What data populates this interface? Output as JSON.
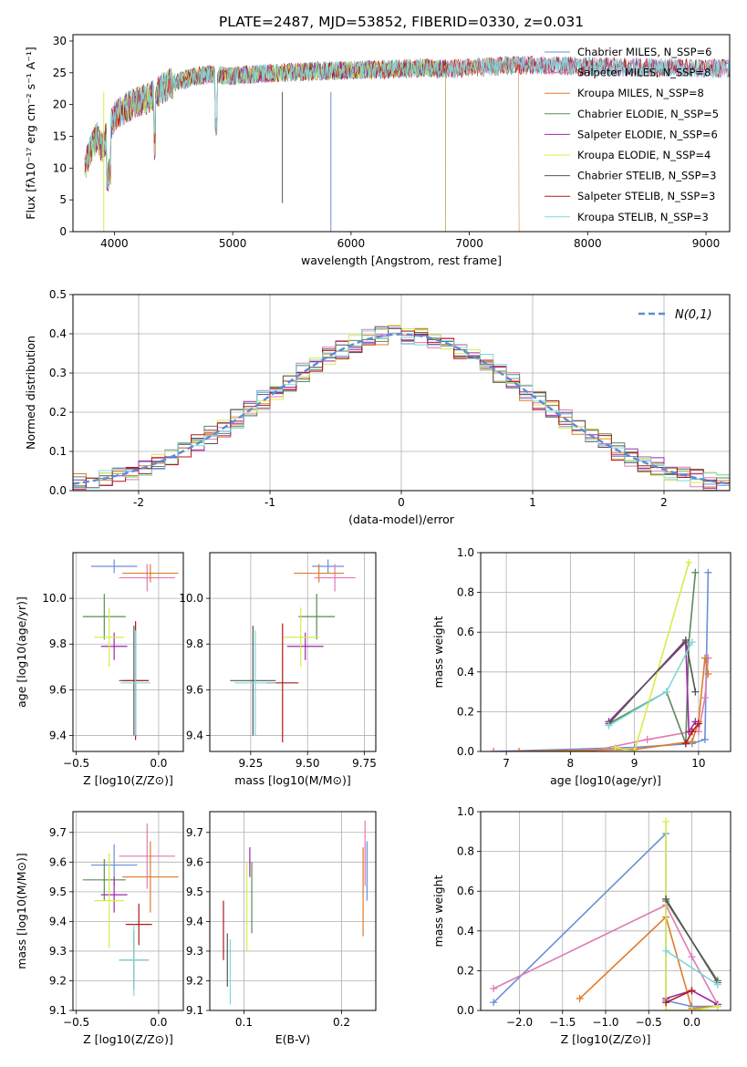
{
  "figure_title": "PLATE=2487, MJD=53852, FIBERID=0330, z=0.031",
  "colors": {
    "Chabrier MILES": "#6a8fd6",
    "Salpeter MILES": "#e07ab4",
    "Kroupa MILES": "#e07b2a",
    "Chabrier ELODIE": "#5a8a5a",
    "Salpeter ELODIE": "#9c2aa6",
    "Kroupa ELODIE": "#d8ec4a",
    "Chabrier STELIB": "#555555",
    "Salpeter STELIB": "#b01818",
    "Kroupa STELIB": "#7fd8d8"
  },
  "chart_data": [
    {
      "id": "spectrum",
      "type": "line",
      "title": "PLATE=2487, MJD=53852, FIBERID=0330, z=0.031",
      "xlabel": "wavelength [Angstrom, rest frame]",
      "ylabel": "Flux [fλ10⁻¹⁷ erg cm⁻² s⁻¹ A⁻¹]",
      "xlim": [
        3650,
        9200
      ],
      "ylim": [
        0,
        31
      ],
      "xticks": [
        4000,
        5000,
        6000,
        7000,
        8000,
        9000
      ],
      "yticks": [
        0,
        5,
        10,
        15,
        20,
        25,
        30
      ],
      "grid": false,
      "legend_position": "top-right",
      "continuum": {
        "x": [
          3750,
          3800,
          3850,
          3900,
          3950,
          4000,
          4100,
          4200,
          4300,
          4400,
          4500,
          4600,
          4700,
          4800,
          4900,
          5000,
          5200,
          5400,
          5600,
          5800,
          6000,
          6200,
          6400,
          6600,
          6800,
          7000,
          7200,
          7400
        ],
        "y": [
          10,
          13,
          15,
          13,
          16,
          18,
          19.5,
          20.5,
          21,
          22.5,
          23.5,
          24,
          24.5,
          24.7,
          24.6,
          24.5,
          24.8,
          25,
          25.2,
          25.3,
          25.4,
          25.5,
          25.6,
          25.8,
          25.6,
          25.8,
          26,
          26.2
        ]
      },
      "series": [
        {
          "name": "Chabrier MILES, N_SSP=6",
          "end": 9200
        },
        {
          "name": "Salpeter MILES, N_SSP=8",
          "end": 9200
        },
        {
          "name": "Kroupa MILES, N_SSP=8",
          "end": 7420
        },
        {
          "name": "Chabrier ELODIE, N_SSP=5",
          "end": 6800
        },
        {
          "name": "Salpeter ELODIE, N_SSP=6",
          "end": 6800
        },
        {
          "name": "Kroupa ELODIE, N_SSP=4",
          "end": 6800
        },
        {
          "name": "Chabrier STELIB, N_SSP=3",
          "end": 9200
        },
        {
          "name": "Salpeter STELIB, N_SSP=3",
          "end": 9200
        },
        {
          "name": "Kroupa STELIB, N_SSP=3",
          "end": 9200
        }
      ]
    },
    {
      "id": "residuals",
      "type": "line",
      "xlabel": "(data-model)/error",
      "ylabel": "Normed distribution",
      "xlim": [
        -2.5,
        2.5
      ],
      "ylim": [
        0,
        0.5
      ],
      "xticks": [
        -2,
        -1,
        0,
        1,
        2
      ],
      "yticks": [
        0.0,
        0.1,
        0.2,
        0.3,
        0.4,
        0.5
      ],
      "grid": true,
      "legend": "N(0,1)",
      "legend_position": "top-right",
      "bin_width": 0.1
    },
    {
      "id": "age-vs-Z",
      "type": "scatter",
      "xlabel": "Z [log10(Z/Z⊙)]",
      "ylabel": "age [log10(age/yr)]",
      "xlim": [
        -0.52,
        0.15
      ],
      "ylim": [
        9.33,
        10.2
      ],
      "xticks": [
        -0.5,
        0.0
      ],
      "yticks": [
        9.4,
        9.6,
        9.8,
        10.0
      ],
      "grid": true,
      "points": [
        {
          "s": "Chabrier MILES",
          "x": -0.27,
          "xerr": 0.14,
          "y": 10.14,
          "yerr": 0.03
        },
        {
          "s": "Salpeter MILES",
          "x": -0.07,
          "xerr": 0.17,
          "y": 10.09,
          "yerr": 0.06
        },
        {
          "s": "Kroupa MILES",
          "x": -0.05,
          "xerr": 0.17,
          "y": 10.11,
          "yerr": 0.04
        },
        {
          "s": "Chabrier ELODIE",
          "x": -0.33,
          "xerr": 0.13,
          "y": 9.92,
          "yerr": 0.1
        },
        {
          "s": "Salpeter ELODIE",
          "x": -0.27,
          "xerr": 0.08,
          "y": 9.79,
          "yerr": 0.06
        },
        {
          "s": "Kroupa ELODIE",
          "x": -0.3,
          "xerr": 0.09,
          "y": 9.83,
          "yerr": 0.13
        },
        {
          "s": "Chabrier STELIB",
          "x": -0.15,
          "xerr": 0.09,
          "y": 9.64,
          "yerr": 0.24
        },
        {
          "s": "Salpeter STELIB",
          "x": -0.14,
          "xerr": 0.08,
          "y": 9.64,
          "yerr": 0.26
        },
        {
          "s": "Kroupa STELIB",
          "x": -0.14,
          "xerr": 0.09,
          "y": 9.63,
          "yerr": 0.23
        }
      ]
    },
    {
      "id": "age-vs-mass",
      "type": "scatter",
      "xlabel": "mass [log10(M/M⊙)]",
      "xlim": [
        9.07,
        9.8
      ],
      "ylim": [
        9.33,
        10.2
      ],
      "xticks": [
        9.25,
        9.5,
        9.75
      ],
      "yticks": [
        9.4,
        9.6,
        9.8,
        10.0
      ],
      "grid": true,
      "points": [
        {
          "s": "Chabrier MILES",
          "x": 9.59,
          "xerr": 0.07,
          "y": 10.14,
          "yerr": 0.03
        },
        {
          "s": "Salpeter MILES",
          "x": 9.62,
          "xerr": 0.09,
          "y": 10.09,
          "yerr": 0.06
        },
        {
          "s": "Kroupa MILES",
          "x": 9.55,
          "xerr": 0.11,
          "y": 10.11,
          "yerr": 0.04
        },
        {
          "s": "Chabrier ELODIE",
          "x": 9.54,
          "xerr": 0.08,
          "y": 9.92,
          "yerr": 0.1
        },
        {
          "s": "Salpeter ELODIE",
          "x": 9.49,
          "xerr": 0.08,
          "y": 9.79,
          "yerr": 0.06
        },
        {
          "s": "Kroupa ELODIE",
          "x": 9.47,
          "xerr": 0.08,
          "y": 9.83,
          "yerr": 0.13
        },
        {
          "s": "Chabrier STELIB",
          "x": 9.26,
          "xerr": 0.1,
          "y": 9.64,
          "yerr": 0.24
        },
        {
          "s": "Salpeter STELIB",
          "x": 9.39,
          "xerr": 0.07,
          "y": 9.63,
          "yerr": 0.26
        },
        {
          "s": "Kroupa STELIB",
          "x": 9.27,
          "xerr": 0.09,
          "y": 9.63,
          "yerr": 0.23
        }
      ]
    },
    {
      "id": "weight-vs-age",
      "type": "line",
      "xlabel": "age [log10(age/yr)]",
      "ylabel": "mass weight",
      "xlim": [
        6.6,
        10.5
      ],
      "ylim": [
        0,
        1.0
      ],
      "xticks": [
        7,
        8,
        9,
        10
      ],
      "yticks": [
        0.0,
        0.2,
        0.4,
        0.6,
        0.8,
        1.0
      ],
      "grid": true,
      "series": [
        {
          "s": "Chabrier MILES",
          "x": [
            6.8,
            9.0,
            9.9,
            10.1,
            10.15
          ],
          "y": [
            0.0,
            0.02,
            0.04,
            0.06,
            0.9
          ]
        },
        {
          "s": "Salpeter MILES",
          "x": [
            6.8,
            8.3,
            9.2,
            9.9,
            10.0,
            10.1,
            10.15
          ],
          "y": [
            0.0,
            0.0,
            0.06,
            0.1,
            0.1,
            0.27,
            0.47
          ]
        },
        {
          "s": "Kroupa MILES",
          "x": [
            7.2,
            9.0,
            9.9,
            10.0,
            10.1,
            10.15
          ],
          "y": [
            0.0,
            0.01,
            0.05,
            0.15,
            0.47,
            0.39
          ]
        },
        {
          "s": "Chabrier ELODIE",
          "x": [
            8.6,
            9.5,
            9.8,
            9.85,
            9.95
          ],
          "y": [
            0.14,
            0.3,
            0.04,
            0.55,
            0.9
          ]
        },
        {
          "s": "Salpeter ELODIE",
          "x": [
            8.6,
            9.8,
            9.85,
            9.95
          ],
          "y": [
            0.15,
            0.55,
            0.1,
            0.15
          ]
        },
        {
          "s": "Kroupa ELODIE",
          "x": [
            8.7,
            9.0,
            9.85
          ],
          "y": [
            0.02,
            0.0,
            0.95
          ]
        },
        {
          "s": "Chabrier STELIB",
          "x": [
            8.6,
            9.8,
            9.95
          ],
          "y": [
            0.14,
            0.56,
            0.3
          ]
        },
        {
          "s": "Salpeter STELIB",
          "x": [
            9.8,
            9.9,
            10.0
          ],
          "y": [
            0.04,
            0.1,
            0.14
          ]
        },
        {
          "s": "Kroupa STELIB",
          "x": [
            8.6,
            9.5,
            9.9
          ],
          "y": [
            0.13,
            0.3,
            0.55
          ]
        }
      ]
    },
    {
      "id": "mass-vs-Z",
      "type": "scatter",
      "xlabel": "Z [log10(Z/Z⊙)]",
      "ylabel": "mass [log10(M/M⊙)]",
      "xlim": [
        -0.52,
        0.15
      ],
      "ylim": [
        9.1,
        9.77
      ],
      "xticks": [
        -0.5,
        0.0
      ],
      "yticks": [
        9.1,
        9.2,
        9.3,
        9.4,
        9.5,
        9.6,
        9.7
      ],
      "grid": true,
      "points": [
        {
          "s": "Chabrier MILES",
          "x": -0.27,
          "xerr": 0.14,
          "y": 9.59,
          "yerr": 0.07
        },
        {
          "s": "Salpeter MILES",
          "x": -0.07,
          "xerr": 0.17,
          "y": 9.62,
          "yerr": 0.11
        },
        {
          "s": "Kroupa MILES",
          "x": -0.05,
          "xerr": 0.17,
          "y": 9.55,
          "yerr": 0.12
        },
        {
          "s": "Chabrier ELODIE",
          "x": -0.33,
          "xerr": 0.13,
          "y": 9.54,
          "yerr": 0.07
        },
        {
          "s": "Salpeter ELODIE",
          "x": -0.27,
          "xerr": 0.08,
          "y": 9.49,
          "yerr": 0.06
        },
        {
          "s": "Kroupa ELODIE",
          "x": -0.3,
          "xerr": 0.09,
          "y": 9.47,
          "yerr": 0.16
        },
        {
          "s": "Chabrier STELIB",
          "x": -0.15,
          "xerr": 0.09,
          "y": 9.27,
          "yerr": 0.1
        },
        {
          "s": "Salpeter STELIB",
          "x": -0.12,
          "xerr": 0.08,
          "y": 9.39,
          "yerr": 0.07
        },
        {
          "s": "Kroupa STELIB",
          "x": -0.15,
          "xerr": 0.09,
          "y": 9.27,
          "yerr": 0.12
        }
      ]
    },
    {
      "id": "mass-vs-ebv",
      "type": "scatter",
      "xlabel": "E(B-V)",
      "xlim": [
        0.065,
        0.235
      ],
      "ylim": [
        9.1,
        9.77
      ],
      "xticks": [
        0.1,
        0.2
      ],
      "yticks": [
        9.1,
        9.2,
        9.3,
        9.4,
        9.5,
        9.6,
        9.7
      ],
      "grid": true,
      "points": [
        {
          "s": "Chabrier MILES",
          "x": 0.226,
          "y": 9.57,
          "yerr": 0.1
        },
        {
          "s": "Salpeter MILES",
          "x": 0.224,
          "y": 9.63,
          "yerr": 0.11
        },
        {
          "s": "Kroupa MILES",
          "x": 0.222,
          "y": 9.5,
          "yerr": 0.15
        },
        {
          "s": "Chabrier ELODIE",
          "x": 0.108,
          "y": 9.48,
          "yerr": 0.12
        },
        {
          "s": "Salpeter ELODIE",
          "x": 0.106,
          "y": 9.6,
          "yerr": 0.05
        },
        {
          "s": "Kroupa ELODIE",
          "x": 0.103,
          "y": 9.45,
          "yerr": 0.15
        },
        {
          "s": "Chabrier STELIB",
          "x": 0.083,
          "y": 9.27,
          "yerr": 0.09
        },
        {
          "s": "Salpeter STELIB",
          "x": 0.079,
          "y": 9.37,
          "yerr": 0.1
        },
        {
          "s": "Kroupa STELIB",
          "x": 0.086,
          "y": 9.23,
          "yerr": 0.11
        }
      ]
    },
    {
      "id": "weight-vs-Z",
      "type": "line",
      "xlabel": "Z [log10(Z/Z⊙)]",
      "ylabel": "mass weight",
      "xlim": [
        -2.45,
        0.45
      ],
      "ylim": [
        0,
        1.0
      ],
      "xticks": [
        -2.0,
        -1.5,
        -1.0,
        -0.5,
        0.0
      ],
      "yticks": [
        0.0,
        0.2,
        0.4,
        0.6,
        0.8,
        1.0
      ],
      "grid": true,
      "series": [
        {
          "s": "Chabrier MILES",
          "x": [
            -2.3,
            -0.3,
            -0.3,
            0.0,
            0.3
          ],
          "y": [
            0.04,
            0.89,
            0.05,
            0.02,
            0.02
          ]
        },
        {
          "s": "Salpeter MILES",
          "x": [
            -2.3,
            -0.3,
            0.0,
            0.3
          ],
          "y": [
            0.11,
            0.53,
            0.27,
            0.03
          ]
        },
        {
          "s": "Kroupa MILES",
          "x": [
            -1.3,
            -0.3,
            0.0,
            0.3
          ],
          "y": [
            0.06,
            0.47,
            0.01,
            0.02
          ]
        },
        {
          "s": "Chabrier ELODIE",
          "x": [
            -0.3,
            0.3
          ],
          "y": [
            0.55,
            0.15
          ]
        },
        {
          "s": "Salpeter ELODIE",
          "x": [
            -0.3,
            0.0,
            0.3
          ],
          "y": [
            0.06,
            0.1,
            0.03
          ]
        },
        {
          "s": "Kroupa ELODIE",
          "x": [
            -0.3,
            -0.3,
            0.0,
            0.3
          ],
          "y": [
            0.95,
            0.0,
            0.0,
            0.02
          ]
        },
        {
          "s": "Chabrier STELIB",
          "x": [
            -0.3,
            0.3
          ],
          "y": [
            0.56,
            0.14
          ]
        },
        {
          "s": "Salpeter STELIB",
          "x": [
            -0.3,
            0.0
          ],
          "y": [
            0.04,
            0.1
          ]
        },
        {
          "s": "Kroupa STELIB",
          "x": [
            -0.3,
            0.3
          ],
          "y": [
            0.3,
            0.13
          ]
        }
      ]
    }
  ]
}
